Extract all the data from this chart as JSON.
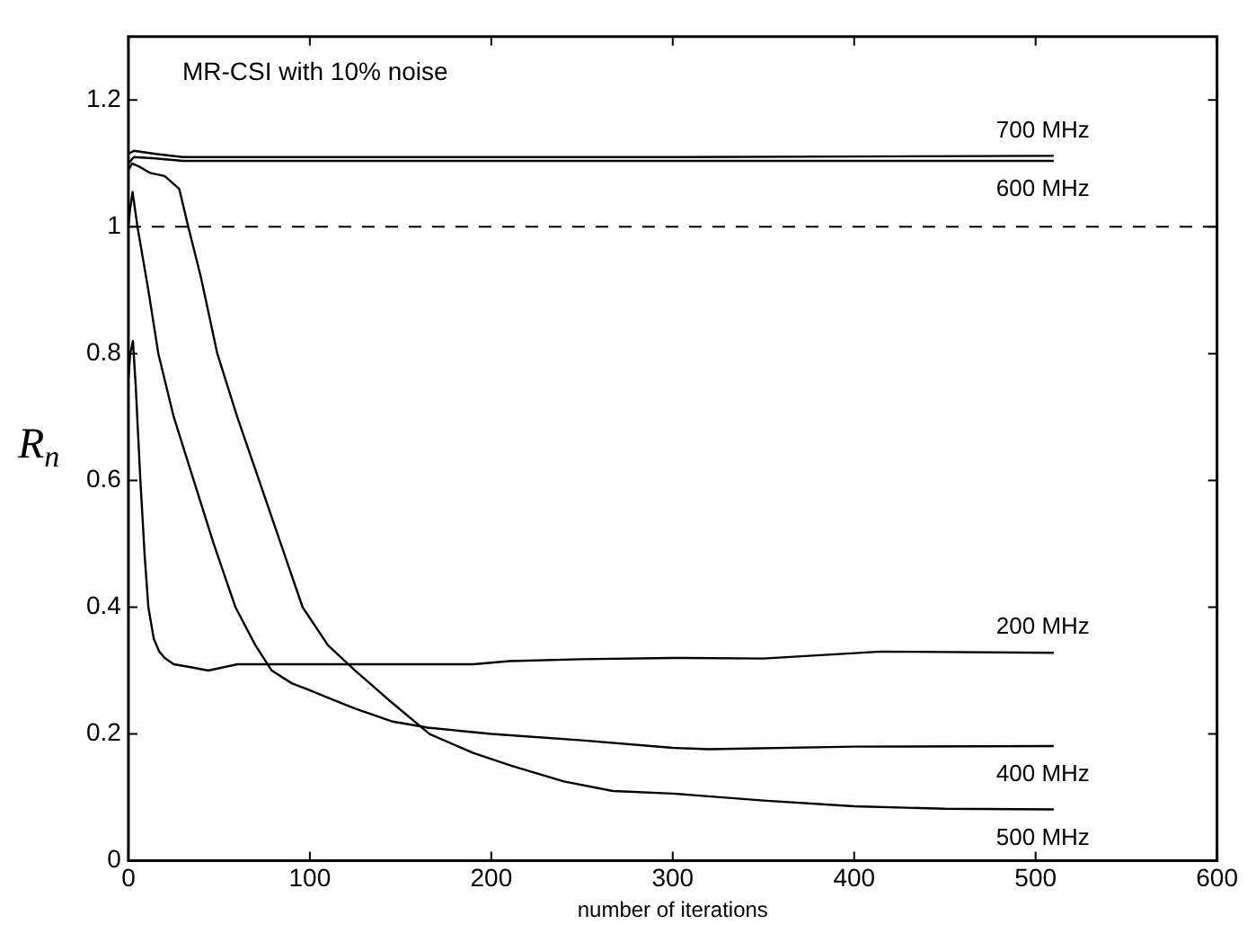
{
  "chart_data": {
    "type": "line",
    "xlabel": "number of iterations",
    "ylabel": "R$_{n}$",
    "annotations": [
      "MR-CSI with 10% noise"
    ],
    "xlim": [
      0,
      600
    ],
    "xticks": [
      0,
      100,
      200,
      300,
      400,
      500,
      600
    ],
    "ylim": [
      0,
      1.3
    ],
    "yticks": [
      0,
      0.2,
      0.4,
      0.6,
      0.8,
      1,
      1.2
    ],
    "grid": false,
    "legend": false,
    "marker": "none",
    "line_style": "solid",
    "ref_lines": [
      {
        "axis": "y",
        "value": 1,
        "line_style": "dashed",
        "color": "#000000"
      }
    ],
    "series": [
      {
        "name": "200 MHz",
        "color": "#000000",
        "x": [
          0,
          1,
          2.5,
          4,
          6.6,
          9,
          11,
          14,
          17,
          20,
          25,
          35,
          44,
          60,
          80,
          100,
          150,
          190,
          210,
          250,
          300,
          350,
          415,
          510
        ],
        "values": [
          0.76,
          0.8,
          0.82,
          0.75,
          0.6,
          0.48,
          0.4,
          0.35,
          0.33,
          0.32,
          0.31,
          0.305,
          0.3,
          0.31,
          0.31,
          0.31,
          0.31,
          0.31,
          0.315,
          0.318,
          0.32,
          0.319,
          0.33,
          0.328
        ]
      },
      {
        "name": "400 MHz",
        "color": "#000000",
        "x": [
          0,
          1,
          2.3,
          5,
          8,
          11,
          16.5,
          25,
          36,
          47,
          59,
          70,
          79,
          90,
          99,
          112,
          125,
          145,
          165,
          200,
          250,
          300,
          320,
          400,
          510
        ],
        "values": [
          1.0,
          1.03,
          1.055,
          1.0,
          0.95,
          0.9,
          0.8,
          0.7,
          0.6,
          0.5,
          0.4,
          0.34,
          0.3,
          0.28,
          0.27,
          0.255,
          0.24,
          0.22,
          0.21,
          0.2,
          0.19,
          0.178,
          0.176,
          0.18,
          0.181
        ]
      },
      {
        "name": "500 MHz",
        "color": "#000000",
        "x": [
          0,
          2,
          6,
          12,
          20,
          28,
          33,
          40,
          49,
          60,
          72,
          84,
          96,
          110,
          125,
          145,
          166,
          190,
          211,
          240,
          267,
          300,
          350,
          400,
          450,
          510
        ],
        "values": [
          1.09,
          1.1,
          1.095,
          1.085,
          1.08,
          1.06,
          1.0,
          0.92,
          0.8,
          0.7,
          0.6,
          0.5,
          0.4,
          0.34,
          0.3,
          0.25,
          0.2,
          0.17,
          0.15,
          0.125,
          0.11,
          0.106,
          0.095,
          0.086,
          0.082,
          0.081
        ]
      },
      {
        "name": "600 MHz",
        "color": "#000000",
        "x": [
          0,
          3,
          15,
          30,
          60,
          100,
          200,
          300,
          400,
          510
        ],
        "values": [
          1.1,
          1.11,
          1.108,
          1.104,
          1.104,
          1.104,
          1.104,
          1.104,
          1.104,
          1.104
        ]
      },
      {
        "name": "700 MHz",
        "color": "#000000",
        "x": [
          0,
          3,
          15,
          30,
          60,
          100,
          200,
          300,
          400,
          510
        ],
        "values": [
          1.115,
          1.12,
          1.115,
          1.11,
          1.11,
          1.11,
          1.11,
          1.11,
          1.111,
          1.112
        ]
      }
    ]
  }
}
